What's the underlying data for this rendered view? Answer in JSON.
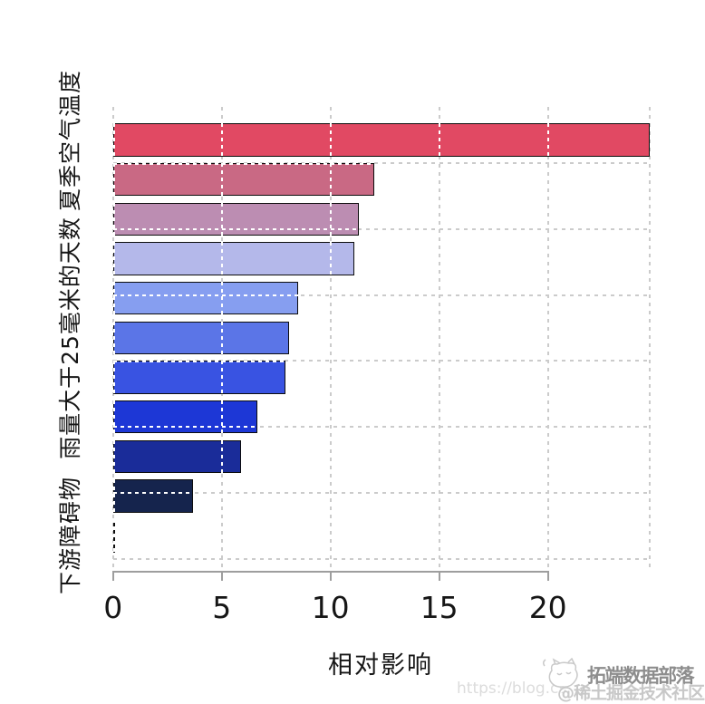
{
  "chart_data": {
    "type": "bar",
    "orientation": "horizontal",
    "title": "",
    "xlabel": "相对影响",
    "ylabel": "",
    "xlim": [
      0,
      24.7
    ],
    "x_ticks": [
      0,
      5,
      10,
      15,
      20
    ],
    "grid": "dashed",
    "legend": "none",
    "bars": [
      {
        "label": "夏季空气温度",
        "value": 24.7,
        "color": "#e14963"
      },
      {
        "label": "",
        "value": 12.0,
        "color": "#c96984"
      },
      {
        "label": "",
        "value": 11.3,
        "color": "#bc8db2"
      },
      {
        "label": "",
        "value": 11.1,
        "color": "#b4b8ea"
      },
      {
        "label": "",
        "value": 8.5,
        "color": "#869ef0"
      },
      {
        "label": "雨量大于25毫米的天数",
        "value": 8.1,
        "color": "#5b75e7"
      },
      {
        "label": "",
        "value": 7.95,
        "color": "#3953e2"
      },
      {
        "label": "",
        "value": 6.65,
        "color": "#1d37d6"
      },
      {
        "label": "",
        "value": 5.9,
        "color": "#1a2c99"
      },
      {
        "label": "",
        "value": 3.7,
        "color": "#15244d"
      },
      {
        "label": "下游障碍物",
        "value": 0.05,
        "color": "#0a0e23"
      }
    ],
    "bar_border_color": "#0d0d0d",
    "gridline_color": "#cbcbcb",
    "gridline_overlay_color": "#ffffff",
    "axis_color": "#9e9e9e"
  },
  "watermark": {
    "logo": "cat-logo",
    "brand": "拓端数据部落",
    "community": "@稀土掘金技术社区",
    "url": "https://blog.cs"
  }
}
